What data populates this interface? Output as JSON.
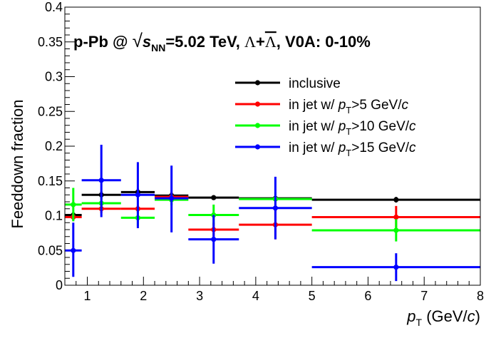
{
  "chart_data": {
    "type": "scatter",
    "title": "p-Pb @ √sNN=5.02 TeV, Λ+Λ̄, V0A: 0-10%",
    "title_parts": {
      "prefix": "p-Pb @ ",
      "sqrt": "√",
      "s": "s",
      "s_sub": "NN",
      "energy": "=5.02 TeV, ",
      "lambda": "Λ",
      "plus": "+",
      "lambda_bar": "Λ",
      "suffix": ", V0A: 0-10%"
    },
    "xlabel": "pT (GeV/c)",
    "xlabel_parts": {
      "p": "p",
      "sub": "T",
      "rest": " (GeV/",
      "c": "c",
      "close": ")"
    },
    "ylabel": "Feeddown fraction",
    "xlim": [
      0.6,
      8
    ],
    "ylim": [
      0,
      0.4
    ],
    "xticks": [
      1,
      2,
      3,
      4,
      5,
      6,
      7,
      8
    ],
    "xtick_labels": [
      "1",
      "2",
      "3",
      "4",
      "5",
      "6",
      "7",
      "8"
    ],
    "yticks": [
      0,
      0.05,
      0.1,
      0.15,
      0.2,
      0.25,
      0.3,
      0.35,
      0.4
    ],
    "ytick_labels": [
      "0",
      "0.05",
      "0.1",
      "0.15",
      "0.2",
      "0.25",
      "0.3",
      "0.35",
      "0.4"
    ],
    "legend_position": "top-right",
    "series": [
      {
        "name": "inclusive",
        "legend": {
          "prefix": "inclusive",
          "sub": "",
          "suffix": "",
          "c": ""
        },
        "color": "#000000",
        "points": [
          {
            "x": 0.75,
            "xlo": 0.6,
            "xhi": 0.9,
            "y": 0.101,
            "ylo": 0.097,
            "yhi": 0.105
          },
          {
            "x": 1.25,
            "xlo": 0.9,
            "xhi": 1.6,
            "y": 0.13,
            "ylo": 0.125,
            "yhi": 0.135
          },
          {
            "x": 1.9,
            "xlo": 1.6,
            "xhi": 2.2,
            "y": 0.134,
            "ylo": 0.129,
            "yhi": 0.139
          },
          {
            "x": 2.5,
            "xlo": 2.2,
            "xhi": 2.8,
            "y": 0.129,
            "ylo": 0.124,
            "yhi": 0.134
          },
          {
            "x": 3.25,
            "xlo": 2.8,
            "xhi": 3.7,
            "y": 0.126,
            "ylo": 0.123,
            "yhi": 0.129
          },
          {
            "x": 4.35,
            "xlo": 3.7,
            "xhi": 5.0,
            "y": 0.125,
            "ylo": 0.122,
            "yhi": 0.128
          },
          {
            "x": 6.5,
            "xlo": 5.0,
            "xhi": 8.0,
            "y": 0.123,
            "ylo": 0.119,
            "yhi": 0.127
          }
        ]
      },
      {
        "name": "in jet w/ pT>5 GeV/c",
        "legend": {
          "prefix": "in jet w/ p",
          "sub": "T",
          "suffix": ">5 GeV/",
          "c": "c"
        },
        "color": "#ff0000",
        "points": [
          {
            "x": 0.75,
            "xlo": 0.6,
            "xhi": 0.9,
            "y": 0.098,
            "ylo": 0.093,
            "yhi": 0.103
          },
          {
            "x": 1.25,
            "xlo": 0.9,
            "xhi": 1.6,
            "y": 0.11,
            "ylo": 0.104,
            "yhi": 0.116
          },
          {
            "x": 1.9,
            "xlo": 1.6,
            "xhi": 2.2,
            "y": 0.11,
            "ylo": 0.105,
            "yhi": 0.115
          },
          {
            "x": 2.5,
            "xlo": 2.2,
            "xhi": 2.8,
            "y": 0.127,
            "ylo": 0.121,
            "yhi": 0.133
          },
          {
            "x": 3.25,
            "xlo": 2.8,
            "xhi": 3.7,
            "y": 0.08,
            "ylo": 0.07,
            "yhi": 0.09
          },
          {
            "x": 4.35,
            "xlo": 3.7,
            "xhi": 5.0,
            "y": 0.087,
            "ylo": 0.066,
            "yhi": 0.108
          },
          {
            "x": 6.5,
            "xlo": 5.0,
            "xhi": 8.0,
            "y": 0.098,
            "ylo": 0.082,
            "yhi": 0.114
          }
        ]
      },
      {
        "name": "in jet w/ pT>10 GeV/c",
        "legend": {
          "prefix": "in jet w/ p",
          "sub": "T",
          "suffix": ">10 GeV/",
          "c": "c"
        },
        "color": "#00ff00",
        "points": [
          {
            "x": 0.75,
            "xlo": 0.6,
            "xhi": 0.9,
            "y": 0.116,
            "ylo": 0.092,
            "yhi": 0.14
          },
          {
            "x": 1.25,
            "xlo": 0.9,
            "xhi": 1.6,
            "y": 0.118,
            "ylo": 0.108,
            "yhi": 0.128
          },
          {
            "x": 1.9,
            "xlo": 1.6,
            "xhi": 2.2,
            "y": 0.097,
            "ylo": 0.085,
            "yhi": 0.109
          },
          {
            "x": 2.5,
            "xlo": 2.2,
            "xhi": 2.8,
            "y": 0.123,
            "ylo": 0.115,
            "yhi": 0.131
          },
          {
            "x": 3.25,
            "xlo": 2.8,
            "xhi": 3.7,
            "y": 0.101,
            "ylo": 0.086,
            "yhi": 0.116
          },
          {
            "x": 4.35,
            "xlo": 3.7,
            "xhi": 5.0,
            "y": 0.124,
            "ylo": 0.114,
            "yhi": 0.134
          },
          {
            "x": 6.5,
            "xlo": 5.0,
            "xhi": 8.0,
            "y": 0.079,
            "ylo": 0.063,
            "yhi": 0.095
          }
        ]
      },
      {
        "name": "in jet w/ pT>15 GeV/c",
        "legend": {
          "prefix": "in jet w/ p",
          "sub": "T",
          "suffix": ">15 GeV/",
          "c": "c"
        },
        "color": "#0000ff",
        "points": [
          {
            "x": 0.75,
            "xlo": 0.6,
            "xhi": 0.9,
            "y": 0.05,
            "ylo": 0.012,
            "yhi": 0.09
          },
          {
            "x": 1.25,
            "xlo": 0.9,
            "xhi": 1.6,
            "y": 0.151,
            "ylo": 0.098,
            "yhi": 0.202
          },
          {
            "x": 1.9,
            "xlo": 1.6,
            "xhi": 2.2,
            "y": 0.13,
            "ylo": 0.082,
            "yhi": 0.177
          },
          {
            "x": 2.5,
            "xlo": 2.2,
            "xhi": 2.8,
            "y": 0.125,
            "ylo": 0.076,
            "yhi": 0.172
          },
          {
            "x": 3.25,
            "xlo": 2.8,
            "xhi": 3.7,
            "y": 0.066,
            "ylo": 0.031,
            "yhi": 0.101
          },
          {
            "x": 4.35,
            "xlo": 3.7,
            "xhi": 5.0,
            "y": 0.111,
            "ylo": 0.066,
            "yhi": 0.156
          },
          {
            "x": 6.5,
            "xlo": 5.0,
            "xhi": 8.0,
            "y": 0.026,
            "ylo": 0.006,
            "yhi": 0.046
          }
        ]
      }
    ]
  }
}
